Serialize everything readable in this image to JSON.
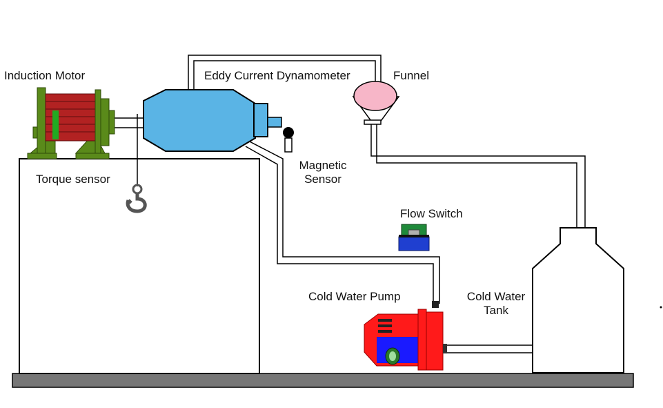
{
  "labels": {
    "induction_motor": "Induction Motor",
    "eddy_current_dynamometer": "Eddy Current Dynamometer",
    "funnel": "Funnel",
    "magnetic_sensor_line1": "Magnetic",
    "magnetic_sensor_line2": "Sensor",
    "torque_sensor": "Torque sensor",
    "flow_switch": "Flow Switch",
    "cold_water_pump": "Cold Water Pump",
    "cold_water_tank_line1": "Cold Water",
    "cold_water_tank_line2": "Tank"
  },
  "colors": {
    "dynamometer_fill": "#5ab4e5",
    "motor_green": "#5a8a1a",
    "motor_red": "#b22222",
    "funnel_pink": "#f7b6c8",
    "pump_red": "#ff1a1a",
    "pump_blue": "#1a1aff",
    "flow_switch_green": "#1f8a3a",
    "flow_switch_blue": "#1f3fd0",
    "base_gray": "#777777",
    "pipe_outline": "#000000"
  }
}
